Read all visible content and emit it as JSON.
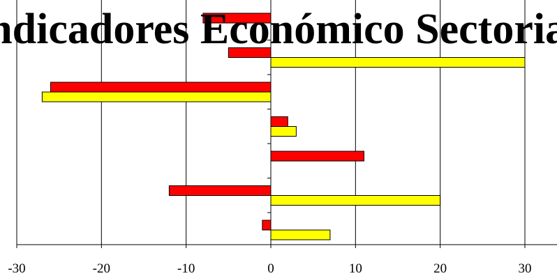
{
  "chart_data": {
    "type": "bar",
    "orientation": "horizontal",
    "title": "Indicadores Económico Sectoriales",
    "xlim": [
      -30,
      30
    ],
    "xticks": [
      -30,
      -20,
      -10,
      0,
      10,
      20,
      30
    ],
    "grid": true,
    "legend": "none",
    "categories": [
      "",
      "",
      "",
      "",
      "",
      "",
      ""
    ],
    "series": [
      {
        "color": "#ff0000",
        "values": [
          -8,
          -5,
          -26,
          2,
          11,
          -12,
          -1
        ]
      },
      {
        "color": "#ffff00",
        "values": [
          0,
          30,
          -27,
          3,
          0,
          20,
          7
        ]
      }
    ]
  }
}
